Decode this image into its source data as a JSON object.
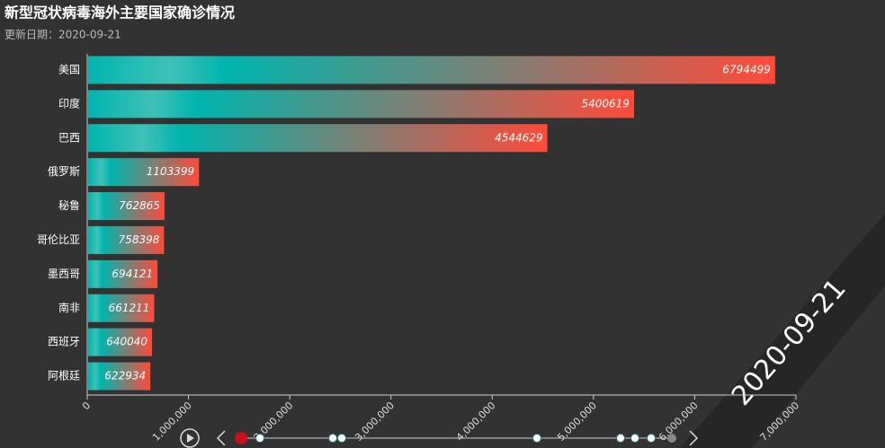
{
  "chart_data": {
    "type": "bar",
    "orientation": "horizontal",
    "title": "新型冠状病毒海外主要国家确诊情况",
    "subtitle": "更新日期：2020-09-21",
    "annotation": "2020-09-21",
    "categories": [
      "美国",
      "印度",
      "巴西",
      "俄罗斯",
      "秘鲁",
      "哥伦比亚",
      "墨西哥",
      "南非",
      "西班牙",
      "阿根廷"
    ],
    "values": [
      6794499,
      5400619,
      4544629,
      1103399,
      762865,
      758398,
      694121,
      661211,
      640040,
      622934
    ],
    "gradient": [
      "#00b5ad",
      "#ff4a3a"
    ],
    "xlim": [
      0,
      7000000
    ],
    "xticks": [
      0,
      {
        "value": 1000000,
        "label": "1,000,000"
      },
      {
        "value": 2000000,
        "label": "2,000,000"
      },
      {
        "value": 3000000,
        "label": "3,000,000"
      },
      {
        "value": 4000000,
        "label": "4,000,000"
      },
      {
        "value": 5000000,
        "label": "5,000,000"
      },
      {
        "value": 6000000,
        "label": "6,000,000"
      },
      {
        "value": 7000000,
        "label": "7,000,000"
      }
    ]
  }
}
